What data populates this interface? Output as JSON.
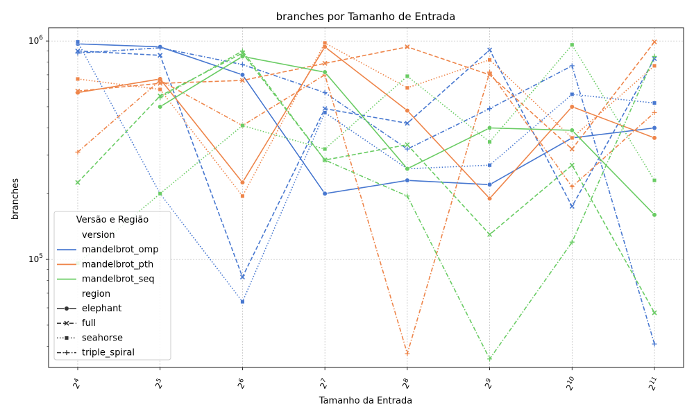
{
  "chart_data": {
    "type": "line",
    "title": "branches por Tamanho de Entrada",
    "xlabel": "Tamanho da Entrada",
    "ylabel": "branches",
    "x": [
      16,
      32,
      64,
      128,
      256,
      512,
      1024,
      2048
    ],
    "xtick_labels": [
      {
        "base": "2",
        "exp": "4"
      },
      {
        "base": "2",
        "exp": "5"
      },
      {
        "base": "2",
        "exp": "6"
      },
      {
        "base": "2",
        "exp": "7"
      },
      {
        "base": "2",
        "exp": "8"
      },
      {
        "base": "2",
        "exp": "9"
      },
      {
        "base": "2",
        "exp": "10"
      },
      {
        "base": "2",
        "exp": "11"
      }
    ],
    "yscale": "log",
    "ylim": [
      32000,
      1150000
    ],
    "ytick_labels": [
      {
        "value": 100000,
        "base": "10",
        "exp": "5"
      },
      {
        "value": 1000000,
        "base": "10",
        "exp": "6"
      }
    ],
    "grid": true,
    "legend": {
      "title": "Versão e Região",
      "placement": "lower-left",
      "version_header": "version",
      "region_header": "region"
    },
    "versions": [
      {
        "name": "mandelbrot_omp",
        "color": "#4878d0"
      },
      {
        "name": "mandelbrot_pth",
        "color": "#ee854a"
      },
      {
        "name": "mandelbrot_seq",
        "color": "#6acc64"
      }
    ],
    "regions": [
      {
        "name": "elephant",
        "dash": "solid",
        "marker": "circle"
      },
      {
        "name": "full",
        "dash": "dashed",
        "marker": "x"
      },
      {
        "name": "seahorse",
        "dash": "dotted",
        "marker": "square"
      },
      {
        "name": "triple_spiral",
        "dash": "dashdot",
        "marker": "plus"
      }
    ],
    "series": [
      {
        "version": "mandelbrot_omp",
        "region": "elephant",
        "values": [
          970000,
          940000,
          700000,
          200000,
          230000,
          220000,
          360000,
          400000
        ]
      },
      {
        "version": "mandelbrot_omp",
        "region": "full",
        "values": [
          900000,
          860000,
          83000,
          490000,
          420000,
          910000,
          175000,
          830000
        ]
      },
      {
        "version": "mandelbrot_omp",
        "region": "seahorse",
        "values": [
          990000,
          200000,
          64000,
          470000,
          260000,
          270000,
          570000,
          520000
        ]
      },
      {
        "version": "mandelbrot_omp",
        "region": "triple_spiral",
        "values": [
          880000,
          930000,
          780000,
          580000,
          320000,
          490000,
          770000,
          41000
        ]
      },
      {
        "version": "mandelbrot_pth",
        "region": "elephant",
        "values": [
          580000,
          670000,
          225000,
          940000,
          480000,
          190000,
          500000,
          360000
        ]
      },
      {
        "version": "mandelbrot_pth",
        "region": "full",
        "values": [
          590000,
          640000,
          660000,
          790000,
          940000,
          700000,
          320000,
          990000
        ]
      },
      {
        "version": "mandelbrot_pth",
        "region": "seahorse",
        "values": [
          670000,
          600000,
          195000,
          980000,
          610000,
          820000,
          360000,
          770000
        ]
      },
      {
        "version": "mandelbrot_pth",
        "region": "triple_spiral",
        "values": [
          310000,
          660000,
          410000,
          700000,
          37000,
          720000,
          215000,
          470000
        ]
      },
      {
        "version": "mandelbrot_seq",
        "region": "elephant",
        "values": [
          null,
          500000,
          850000,
          720000,
          260000,
          400000,
          390000,
          160000
        ]
      },
      {
        "version": "mandelbrot_seq",
        "region": "full",
        "values": [
          225000,
          560000,
          880000,
          285000,
          335000,
          130000,
          270000,
          57000
        ]
      },
      {
        "version": "mandelbrot_seq",
        "region": "seahorse",
        "values": [
          96000,
          200000,
          410000,
          320000,
          690000,
          345000,
          960000,
          230000
        ]
      },
      {
        "version": "mandelbrot_seq",
        "region": "triple_spiral",
        "values": [
          null,
          550000,
          900000,
          285000,
          195000,
          35000,
          120000,
          850000
        ]
      }
    ]
  }
}
